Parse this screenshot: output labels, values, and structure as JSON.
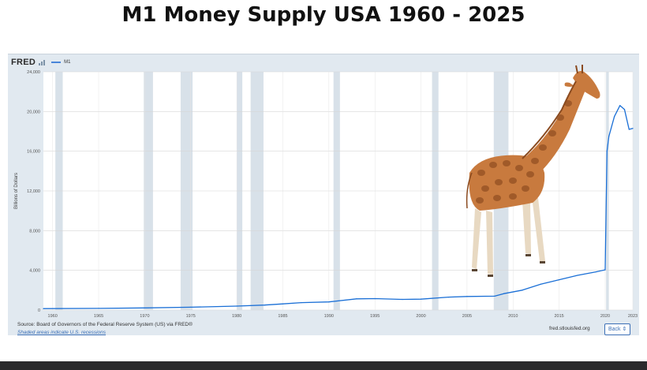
{
  "page_title": "M1 Money Supply USA 1960 - 2025",
  "fred": {
    "logo_text": "FRED",
    "legend_label": "M1",
    "source_text": "Source: Board of Governors of the Federal Reserve System (US) via FRED®",
    "recession_note": "Shaded areas indicate U.S. recessions",
    "url_text": "fred.stlouisfed.org",
    "back_button": "Back ⇕"
  },
  "colors": {
    "panel_bg": "#e1e9f0",
    "plot_bg": "#ffffff",
    "line": "#1a6fd6",
    "recession": "#d8e1e9",
    "bottom_bar": "#2a2a2c"
  },
  "overlay_image": "giraffe-photo",
  "chart_data": {
    "type": "line",
    "title": "",
    "xlabel": "",
    "ylabel": "Billions of Dollars",
    "xlim": [
      1959,
      2023
    ],
    "ylim": [
      0,
      24000
    ],
    "grid": true,
    "legend": "top-left",
    "x_ticks": [
      "1960",
      "1965",
      "1970",
      "1975",
      "1980",
      "1985",
      "1990",
      "1995",
      "2000",
      "2005",
      "2010",
      "2015",
      "2020",
      "2023"
    ],
    "y_ticks": [
      "0",
      "4,000",
      "8,000",
      "12,000",
      "16,000",
      "20,000",
      "24,000"
    ],
    "recessions": [
      [
        1960.3,
        1961.1
      ],
      [
        1969.9,
        1970.9
      ],
      [
        1973.9,
        1975.2
      ],
      [
        1980.0,
        1980.6
      ],
      [
        1981.5,
        1982.9
      ],
      [
        1990.5,
        1991.2
      ],
      [
        2001.2,
        2001.9
      ],
      [
        2007.9,
        2009.5
      ],
      [
        2020.1,
        2020.4
      ]
    ],
    "series": [
      {
        "name": "M1",
        "x": [
          1959,
          1965,
          1970,
          1975,
          1980,
          1983,
          1985,
          1987,
          1990,
          1993,
          1995,
          1998,
          2000,
          2003,
          2005,
          2008,
          2009,
          2011,
          2013,
          2015,
          2017,
          2019,
          2020.0,
          2020.2,
          2020.4,
          2021.0,
          2021.6,
          2022.1,
          2022.6,
          2023.0
        ],
        "y": [
          140,
          170,
          215,
          290,
          400,
          500,
          620,
          750,
          820,
          1130,
          1150,
          1070,
          1100,
          1300,
          1370,
          1400,
          1650,
          2000,
          2600,
          3050,
          3500,
          3850,
          4050,
          16000,
          17500,
          19500,
          20600,
          20200,
          18200,
          18300
        ]
      }
    ]
  }
}
